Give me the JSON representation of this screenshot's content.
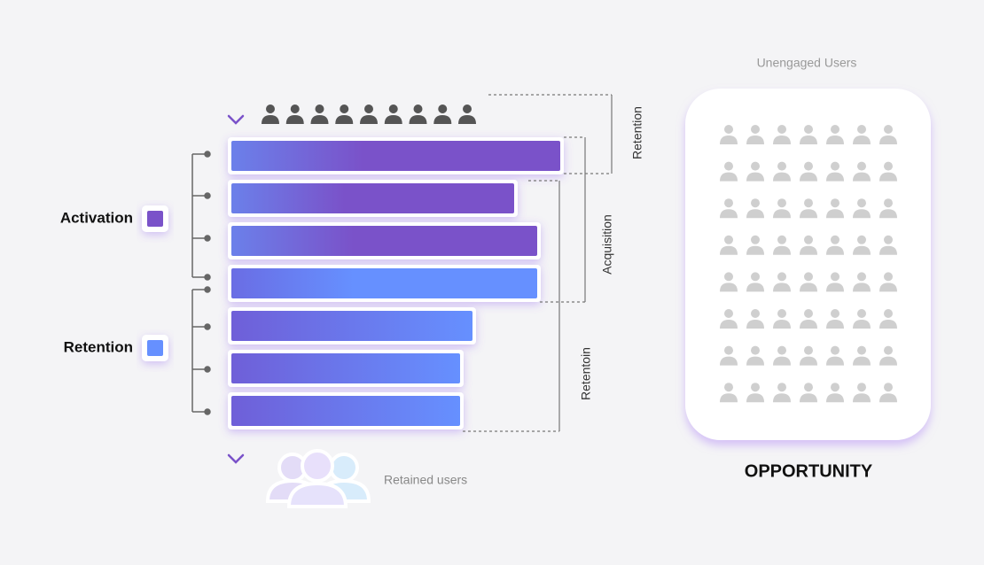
{
  "top_label": "Unengaged Users",
  "brackets": {
    "retention_top": "Retention",
    "acquisition": "Acquisition",
    "retention_bottom": "Retentoin"
  },
  "legend": {
    "activation": "Activation",
    "retention": "Retention"
  },
  "retained_label": "Retained users",
  "opportunity": "OPPORTUNITY"
}
